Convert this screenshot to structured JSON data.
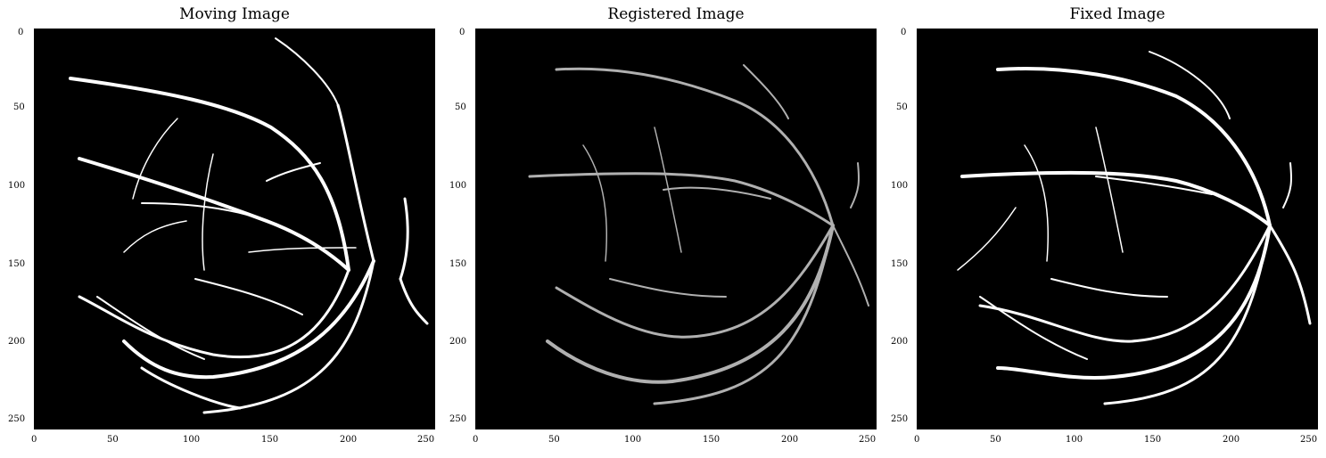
{
  "figure": {
    "panels": [
      {
        "title": "Moving Image"
      },
      {
        "title": "Registered Image"
      },
      {
        "title": "Fixed Image"
      }
    ],
    "x_ticks": [
      "0",
      "50",
      "100",
      "150",
      "200",
      "250"
    ],
    "y_ticks": [
      "0",
      "50",
      "100",
      "150",
      "200",
      "250"
    ],
    "image_extent": [
      0,
      256
    ],
    "colors": {
      "background": "#000000",
      "vessel": "#ffffff"
    }
  }
}
